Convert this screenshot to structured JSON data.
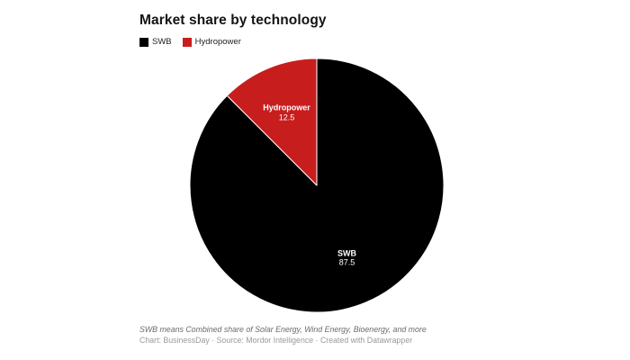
{
  "header": {
    "title": "Market share by technology"
  },
  "legend": {
    "items": [
      {
        "label": "SWB",
        "color": "#000000"
      },
      {
        "label": "Hydropower",
        "color": "#c71e1d"
      }
    ]
  },
  "chart_data": {
    "type": "pie",
    "title": "Market share by technology",
    "slices": [
      {
        "label": "SWB",
        "value": 87.5,
        "color": "#000000",
        "label_color": "#ffffff"
      },
      {
        "label": "Hydropower",
        "value": 12.5,
        "color": "#c71e1d",
        "label_color": "#ffffff"
      }
    ],
    "start_angle_deg": 0,
    "direction": "clockwise",
    "value_labels_shown": true,
    "separator_color": "#ffffff",
    "legend_position": "top-left"
  },
  "footer": {
    "note": "SWB means Combined share of Solar Energy, Wind Energy, Bioenergy, and more",
    "attribution": "Chart: BusinessDay · Source: Mordor Intelligence · Created with Datawrapper"
  }
}
